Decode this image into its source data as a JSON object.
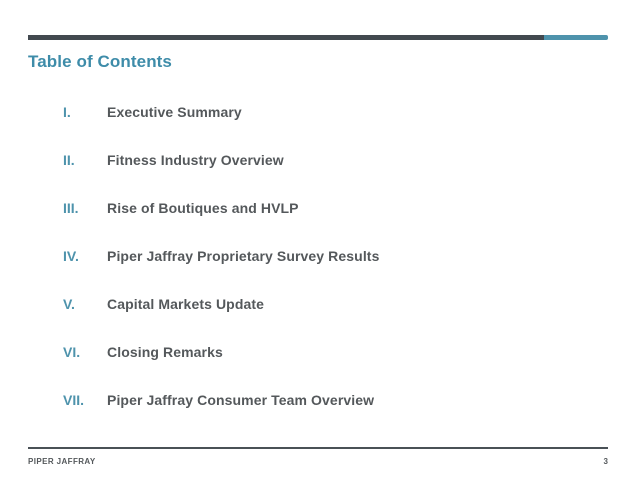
{
  "slide": {
    "title": "Table of Contents",
    "footer_brand": "PIPER JAFFRAY",
    "page_number": "3"
  },
  "toc": {
    "items": [
      {
        "numeral": "I.",
        "label": "Executive Summary"
      },
      {
        "numeral": "II.",
        "label": "Fitness Industry Overview"
      },
      {
        "numeral": "III.",
        "label": "Rise of Boutiques and HVLP"
      },
      {
        "numeral": "IV.",
        "label": "Piper Jaffray Proprietary Survey Results"
      },
      {
        "numeral": "V.",
        "label": "Capital Markets Update"
      },
      {
        "numeral": "VI.",
        "label": "Closing Remarks"
      },
      {
        "numeral": "VII.",
        "label": "Piper Jaffray Consumer Team Overview"
      }
    ]
  },
  "colors": {
    "accent_teal": "#4E93AC",
    "title_teal": "#3E8CA9",
    "bar_dark": "#42494F",
    "text_dark": "#54585B",
    "footer_line": "#4A5156"
  }
}
